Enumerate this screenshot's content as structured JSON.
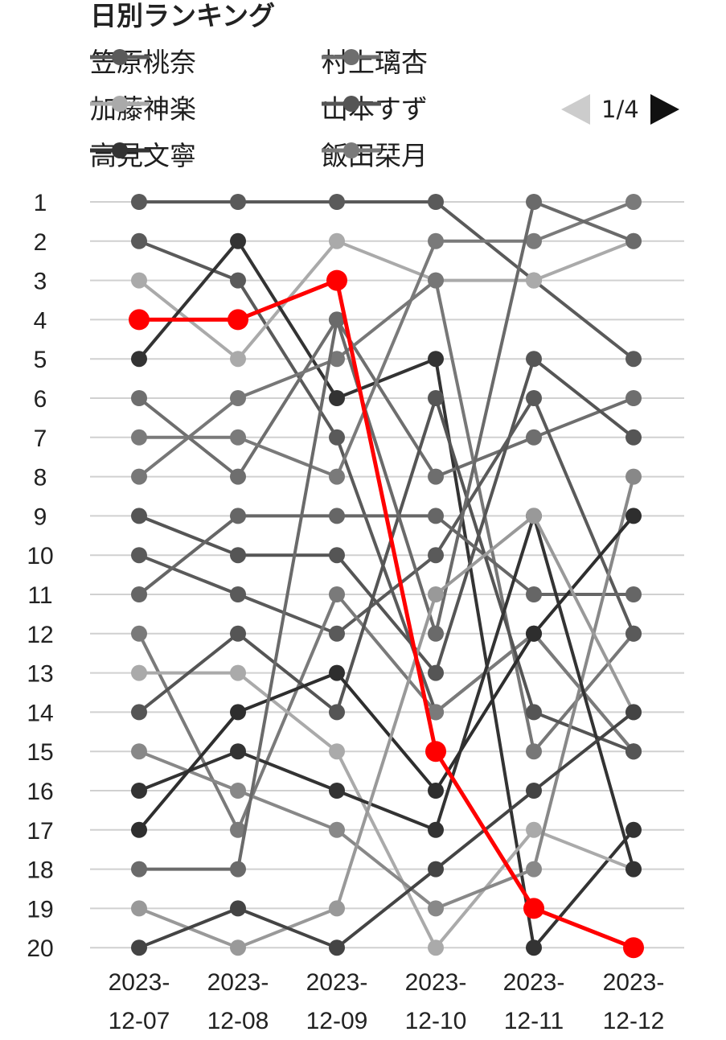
{
  "title": "日別ランキング",
  "legend": {
    "items": [
      {
        "label": "笠原桃奈",
        "color": "#5a5a5a"
      },
      {
        "label": "村上璃杏",
        "color": "#6e6e6e"
      },
      {
        "label": "加藤神楽",
        "color": "#aaaaaa"
      },
      {
        "label": "山本すず",
        "color": "#555555"
      },
      {
        "label": "高見文寧",
        "color": "#333333"
      },
      {
        "label": "飯田栞月",
        "color": "#7a7a7a"
      }
    ],
    "pager": {
      "text": "1/4"
    }
  },
  "chart_data": {
    "type": "line",
    "title": "日別ランキング",
    "xlabel": "",
    "ylabel": "",
    "ylim": [
      1,
      20
    ],
    "y_inverted": true,
    "grid": true,
    "legend_position": "top",
    "categories": [
      "2023-12-07",
      "2023-12-08",
      "2023-12-09",
      "2023-12-10",
      "2023-12-11",
      "2023-12-12"
    ],
    "x_tick_labels": [
      [
        "2023-",
        "12-07"
      ],
      [
        "2023-",
        "12-08"
      ],
      [
        "2023-",
        "12-09"
      ],
      [
        "2023-",
        "12-10"
      ],
      [
        "2023-",
        "12-11"
      ],
      [
        "2023-",
        "12-12"
      ]
    ],
    "y_ticks": [
      1,
      2,
      3,
      4,
      5,
      6,
      7,
      8,
      9,
      10,
      11,
      12,
      13,
      14,
      15,
      16,
      17,
      18,
      19,
      20
    ],
    "highlight_color": "#ff0000",
    "series": [
      {
        "values": [
          1,
          1,
          1,
          1,
          3,
          5
        ],
        "color": "#5a5a5a"
      },
      {
        "values": [
          2,
          3,
          7,
          14,
          12,
          15
        ],
        "color": "#5a5a5a"
      },
      {
        "values": [
          3,
          5,
          2,
          3,
          3,
          2
        ],
        "color": "#aaaaaa"
      },
      {
        "values": [
          5,
          2,
          6,
          5,
          20,
          17
        ],
        "color": "#333333"
      },
      {
        "values": [
          6,
          8,
          4,
          8,
          7,
          6
        ],
        "color": "#6e6e6e"
      },
      {
        "values": [
          7,
          7,
          8,
          2,
          2,
          1
        ],
        "color": "#7a7a7a"
      },
      {
        "values": [
          8,
          6,
          5,
          3,
          15,
          12
        ],
        "color": "#777777"
      },
      {
        "values": [
          9,
          10,
          10,
          13,
          5,
          7
        ],
        "color": "#555555"
      },
      {
        "values": [
          10,
          11,
          12,
          10,
          6,
          12
        ],
        "color": "#5a5a5a"
      },
      {
        "values": [
          11,
          9,
          9,
          9,
          11,
          11
        ],
        "color": "#666666"
      },
      {
        "values": [
          12,
          17,
          11,
          14,
          12,
          15
        ],
        "color": "#7a7a7a"
      },
      {
        "values": [
          13,
          13,
          15,
          20,
          17,
          18
        ],
        "color": "#aaaaaa"
      },
      {
        "values": [
          14,
          12,
          14,
          6,
          14,
          15
        ],
        "color": "#555555"
      },
      {
        "values": [
          15,
          16,
          17,
          19,
          18,
          8
        ],
        "color": "#888888"
      },
      {
        "values": [
          16,
          15,
          16,
          17,
          9,
          18
        ],
        "color": "#333333"
      },
      {
        "values": [
          17,
          14,
          13,
          16,
          12,
          9
        ],
        "color": "#2e2e2e"
      },
      {
        "values": [
          18,
          18,
          4,
          12,
          1,
          2
        ],
        "color": "#6a6a6a"
      },
      {
        "values": [
          19,
          20,
          19,
          11,
          9,
          14
        ],
        "color": "#999999"
      },
      {
        "values": [
          20,
          19,
          20,
          18,
          16,
          14
        ],
        "color": "#444444"
      },
      {
        "values": [
          4,
          4,
          3,
          15,
          19,
          20
        ],
        "color": "#ff0000",
        "highlight": true
      }
    ]
  }
}
